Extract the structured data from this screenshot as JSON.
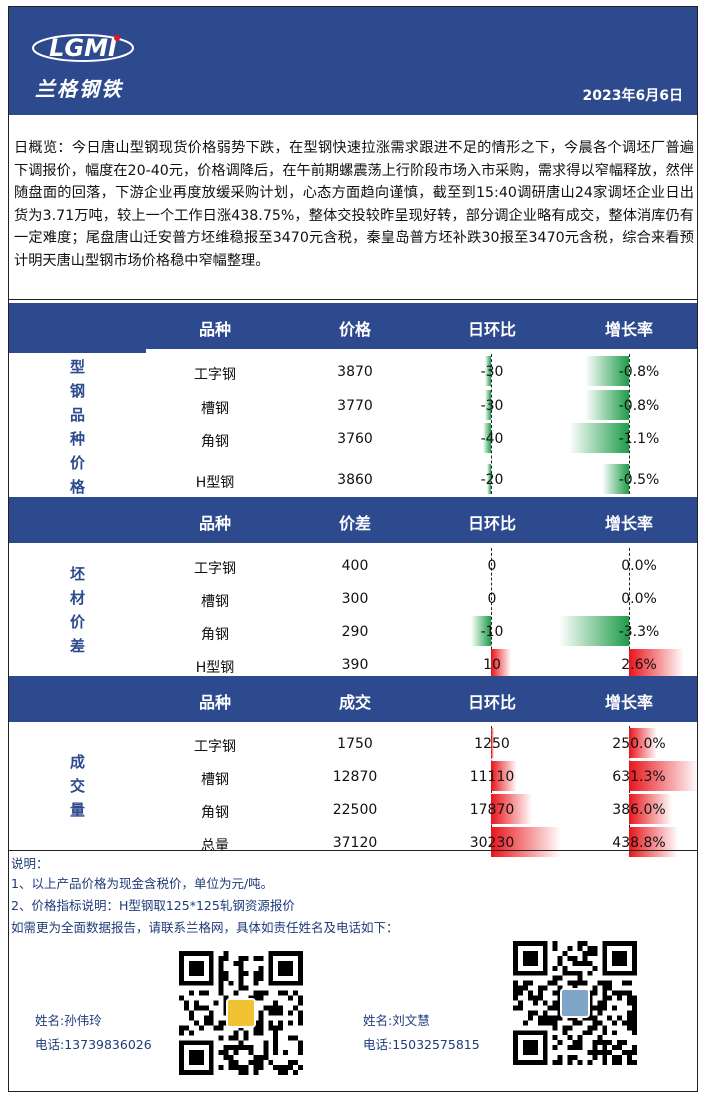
{
  "header": {
    "logo_text": "LGMI",
    "logo_cn": "兰格钢铁",
    "date": "2023年6月6日"
  },
  "overview": "日概览：今日唐山型钢现货价格弱势下跌，在型钢快速拉涨需求跟进不足的情形之下，今晨各个调坯厂普遍下调报价，幅度在20-40元，价格调降后，在午前期螺震荡上行阶段市场入市采购，需求得以窄幅释放，然伴随盘面的回落，下游企业再度放缓采购计划，心态方面趋向谨慎，截至到15:40调研唐山24家调坯企业日出货为3.71万吨，较上一个工作日涨438.75%，整体交投较昨呈现好转，部分调企业略有成交，整体消库仍有一定难度；尾盘唐山迁安普方坯维稳报至3470元含税，秦皇岛普方坯补跌30报至3470元含税，综合来看预计明天唐山型钢市场价格稳中窄幅整理。",
  "colors": {
    "primary": "#2e4a8e",
    "up": "#e8151b",
    "down": "#1e9c4a"
  },
  "tables": [
    {
      "label": [
        "型",
        "钢",
        "品",
        "种",
        "价",
        "格"
      ],
      "headers": [
        "品种",
        "价格",
        "日环比",
        "增长率"
      ],
      "rows": [
        {
          "name": "工字钢",
          "value": "3870",
          "change": "-30",
          "rate": "-0.8%",
          "change_num": -30,
          "rate_num": -0.8
        },
        {
          "name": "槽钢",
          "value": "3770",
          "change": "-30",
          "rate": "-0.8%",
          "change_num": -30,
          "rate_num": -0.8
        },
        {
          "name": "角钢",
          "value": "3760",
          "change": "-40",
          "rate": "-1.1%",
          "change_num": -40,
          "rate_num": -1.1
        },
        {
          "name": "H型钢",
          "value": "3860",
          "change": "-20",
          "rate": "-0.5%",
          "change_num": -20,
          "rate_num": -0.5
        }
      ]
    },
    {
      "label": [
        "坯",
        "材",
        "价",
        "差"
      ],
      "headers": [
        "品种",
        "价差",
        "日环比",
        "增长率"
      ],
      "rows": [
        {
          "name": "工字钢",
          "value": "400",
          "change": "0",
          "rate": "0.0%",
          "change_num": 0,
          "rate_num": 0
        },
        {
          "name": "槽钢",
          "value": "300",
          "change": "0",
          "rate": "0.0%",
          "change_num": 0,
          "rate_num": 0
        },
        {
          "name": "角钢",
          "value": "290",
          "change": "-10",
          "rate": "-3.3%",
          "change_num": -10,
          "rate_num": -3.3
        },
        {
          "name": "H型钢",
          "value": "390",
          "change": "10",
          "rate": "2.6%",
          "change_num": 10,
          "rate_num": 2.6
        }
      ]
    },
    {
      "label": [
        "成",
        "交",
        "量"
      ],
      "headers": [
        "品种",
        "成交",
        "日环比",
        "增长率"
      ],
      "rows": [
        {
          "name": "工字钢",
          "value": "1750",
          "change": "1250",
          "rate": "250.0%",
          "change_num": 1250,
          "rate_num": 250.0
        },
        {
          "name": "槽钢",
          "value": "12870",
          "change": "11110",
          "rate": "631.3%",
          "change_num": 11110,
          "rate_num": 631.3
        },
        {
          "name": "角钢",
          "value": "22500",
          "change": "17870",
          "rate": "386.0%",
          "change_num": 17870,
          "rate_num": 386.0
        },
        {
          "name": "总量",
          "value": "37120",
          "change": "30230",
          "rate": "438.8%",
          "change_num": 30230,
          "rate_num": 438.8
        }
      ]
    }
  ],
  "notes": {
    "title": "说明：",
    "line1": "1、以上产品价格为现金含税价，单位为元/吨。",
    "line2": "2、价格指标说明：H型钢取125*125轧钢资源报价",
    "line3": "如需更为全面数据报告，请联系兰格网，具体如责任姓名及电话如下："
  },
  "contacts": [
    {
      "name": "姓名:孙伟玲",
      "phone": "电话:13739836026"
    },
    {
      "name": "姓名:刘文慧",
      "phone": "电话:15032575815"
    }
  ]
}
